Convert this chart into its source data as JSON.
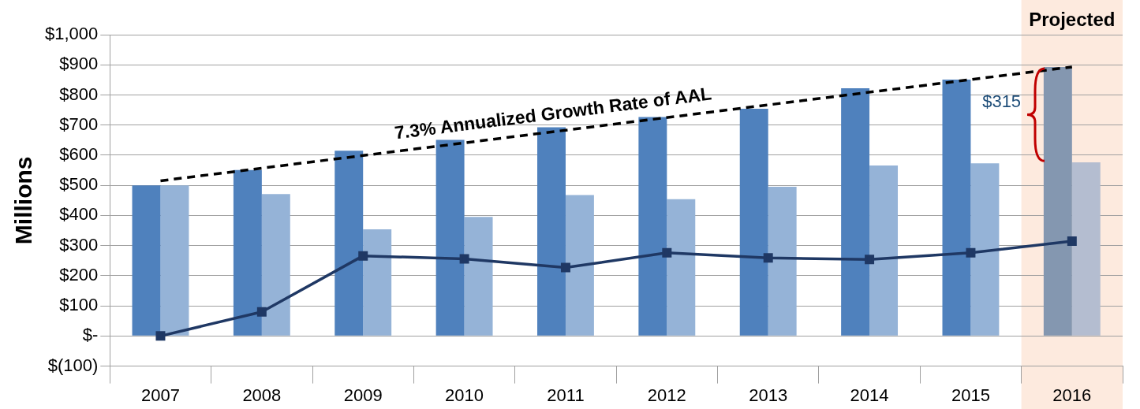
{
  "chart_data": {
    "type": "bar",
    "ylabel": "Millions",
    "categories": [
      "2007",
      "2008",
      "2009",
      "2010",
      "2011",
      "2012",
      "2013",
      "2014",
      "2015",
      "2016"
    ],
    "series": [
      {
        "colors": [
          "#4f81bd",
          "#4f81bd",
          "#4f81bd",
          "#4f81bd",
          "#4f81bd",
          "#4f81bd",
          "#4f81bd",
          "#4f81bd",
          "#4f81bd",
          "#8497b0"
        ],
        "values": [
          500,
          551,
          615,
          651,
          693,
          727,
          754,
          822,
          851,
          893
        ]
      },
      {
        "colors": [
          "#95b3d7",
          "#95b3d7",
          "#95b3d7",
          "#95b3d7",
          "#95b3d7",
          "#95b3d7",
          "#95b3d7",
          "#95b3d7",
          "#95b3d7",
          "#b4bdd0"
        ],
        "values": [
          500,
          471,
          354,
          395,
          468,
          454,
          495,
          566,
          573,
          576
        ]
      },
      {
        "type": "line",
        "color": "#1f3864",
        "marker": "square",
        "values": [
          0,
          80,
          266,
          256,
          227,
          276,
          259,
          254,
          276,
          315
        ]
      },
      {
        "type": "line",
        "color": "#000000",
        "line_style": "dashed",
        "marker": "none",
        "values": [
          515,
          null,
          null,
          null,
          null,
          null,
          null,
          null,
          null,
          893
        ]
      }
    ],
    "ylim": [
      -100,
      1000
    ],
    "yticks": [
      {
        "value": -100,
        "label": "$(100)"
      },
      {
        "value": 0,
        "label": "$-"
      },
      {
        "value": 100,
        "label": "$100"
      },
      {
        "value": 200,
        "label": "$200"
      },
      {
        "value": 300,
        "label": "$300"
      },
      {
        "value": 400,
        "label": "$400"
      },
      {
        "value": 500,
        "label": "$500"
      },
      {
        "value": 600,
        "label": "$600"
      },
      {
        "value": 700,
        "label": "$700"
      },
      {
        "value": 800,
        "label": "$800"
      },
      {
        "value": 900,
        "label": "$900"
      },
      {
        "value": 1000,
        "label": "$1,000"
      }
    ],
    "grid": "y",
    "legend": false,
    "bands": [
      {
        "axis": "x",
        "from": "2016",
        "to": "2016",
        "label": "Projected",
        "color": "#fdeade"
      }
    ],
    "annotations": [
      "7.3% Annualized Growth Rate of AAL",
      {
        "text": "$315",
        "x": "2016",
        "y": 775
      }
    ]
  }
}
